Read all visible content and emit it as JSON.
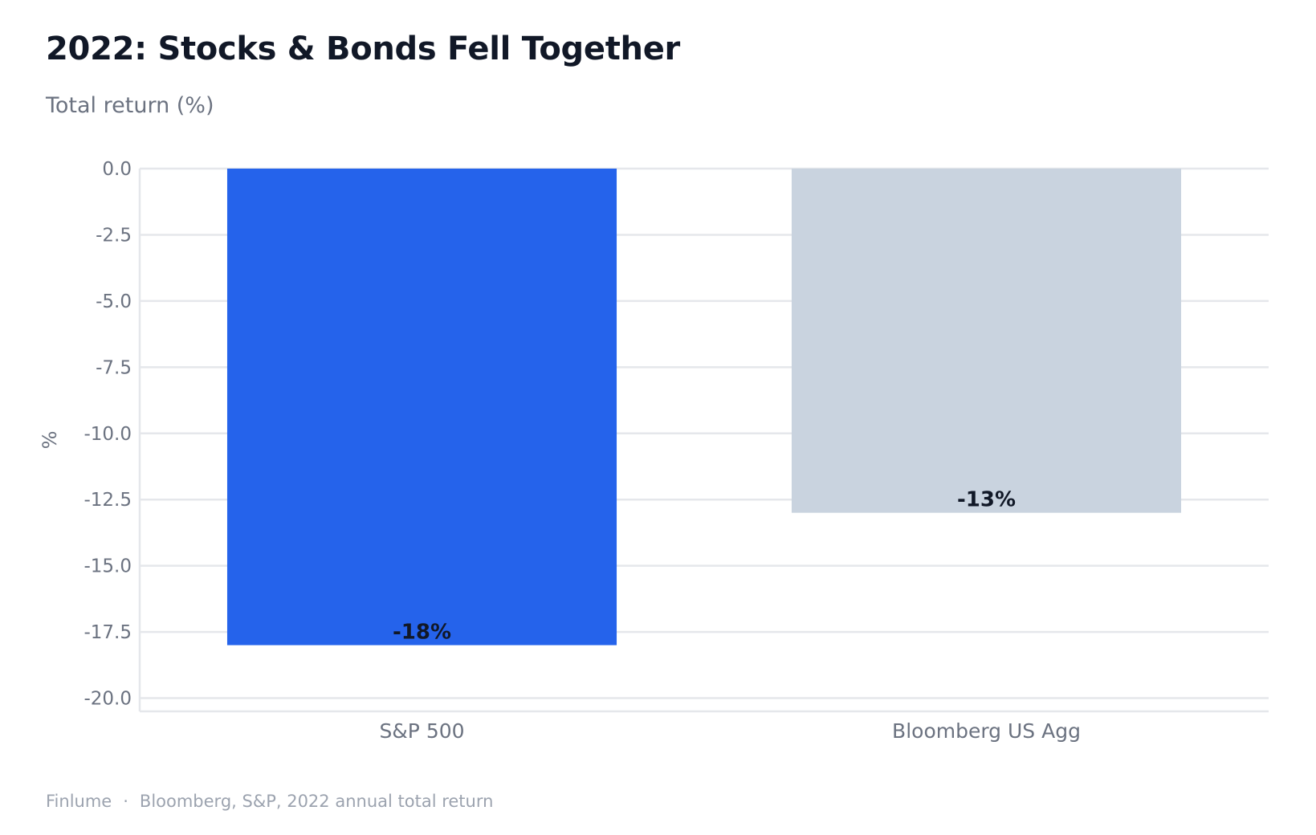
{
  "colors": {
    "sp500": "#2563eb",
    "agg": "#c9d3df",
    "grid": "#e5e7eb",
    "text": "#111827",
    "muted": "#6b7280"
  },
  "header": {
    "title": "2022: Stocks & Bonds Fell Together",
    "subtitle": "Total return (%)"
  },
  "footer": {
    "brand": "Finlume",
    "separator": "·",
    "source": "Bloomberg, S&P, 2022 annual total return"
  },
  "chart_data": {
    "type": "bar",
    "categories": [
      "S&P 500",
      "Bloomberg US Agg"
    ],
    "values": [
      -18,
      -13
    ],
    "data_labels": [
      "-18%",
      "-13%"
    ],
    "bar_colors": [
      "#2563eb",
      "#c9d3df"
    ],
    "ylabel": "%",
    "ylim": [
      -20.5,
      0
    ],
    "yticks": [
      0,
      -2.5,
      -5,
      -7.5,
      -10,
      -12.5,
      -15,
      -17.5,
      -20
    ],
    "ytick_labels": [
      "0.0",
      "-2.5",
      "-5.0",
      "-7.5",
      "-10.0",
      "-12.5",
      "-15.0",
      "-17.5",
      "-20.0"
    ],
    "grid": true,
    "legend": "none"
  }
}
